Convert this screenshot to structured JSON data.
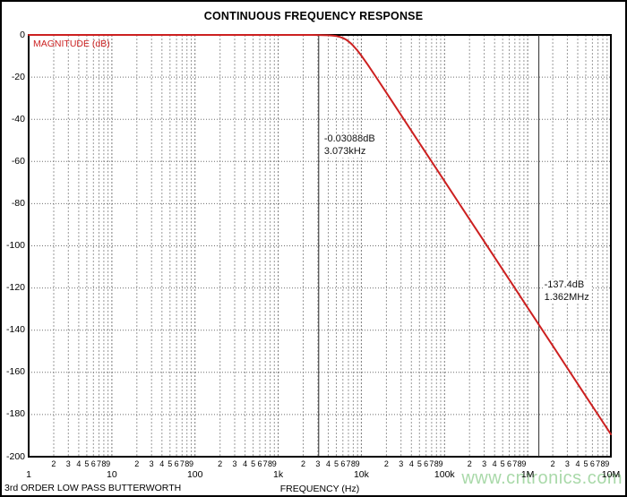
{
  "watermark": "www.cntronics.com",
  "colors": {
    "curve": "#cc2020",
    "magnitude_label": "#cc2222",
    "watermark": "#a9d9a9",
    "grid_minor": "#9a9a9a",
    "grid_decade": "#7a7a7a",
    "grid_horizontal": "#6e6e6e",
    "cursor_line": "#2b2b2b",
    "plot_border": "#000000"
  },
  "chart_data": {
    "type": "line",
    "title": "CONTINUOUS FREQUENCY RESPONSE",
    "xlabel": "FREQUENCY (Hz)",
    "ylabel": "MAGNITUDE (dB)",
    "caption_left": "3rd ORDER LOW PASS BUTTERWORTH",
    "x_scale": "log",
    "xlim": [
      1,
      10000000
    ],
    "ylim": [
      -200,
      0
    ],
    "grid": true,
    "legend_position": "none",
    "y_ticks": [
      0,
      -20,
      -40,
      -60,
      -80,
      -100,
      -120,
      -140,
      -160,
      -180,
      -200
    ],
    "x_decade_labels": [
      "1",
      "10",
      "100",
      "1k",
      "10k",
      "100k",
      "1M",
      "10M"
    ],
    "x_minor_digits": [
      "2",
      "3",
      "4",
      "5",
      "6",
      "7",
      "8",
      "9"
    ],
    "series": [
      {
        "name": "MAGNITUDE (dB)",
        "color": "#cc2020",
        "points": [
          [
            1,
            0
          ],
          [
            10,
            0
          ],
          [
            100,
            0
          ],
          [
            1000,
            0
          ],
          [
            1500,
            -0.0003
          ],
          [
            2000,
            -0.0024
          ],
          [
            2500,
            -0.0091
          ],
          [
            3000,
            -0.0272
          ],
          [
            3073,
            -0.0309
          ],
          [
            3500,
            -0.0683
          ],
          [
            4000,
            -0.1504
          ],
          [
            4500,
            -0.2996
          ],
          [
            5000,
            -0.5478
          ],
          [
            5500,
            -0.928
          ],
          [
            6000,
            -1.4634
          ],
          [
            6500,
            -2.173
          ],
          [
            7000,
            -3.038
          ],
          [
            7500,
            -4.035
          ],
          [
            8000,
            -5.125
          ],
          [
            9000,
            -7.46
          ],
          [
            10000,
            -9.826
          ],
          [
            12000,
            -14.26
          ],
          [
            15000,
            -19.96
          ],
          [
            20000,
            -27.42
          ],
          [
            30000,
            -37.98
          ],
          [
            50000,
            -51.29
          ],
          [
            70000,
            -60.06
          ],
          [
            100000,
            -69.35
          ],
          [
            150000,
            -79.92
          ],
          [
            200000,
            -87.4
          ],
          [
            300000,
            -97.98
          ],
          [
            500000,
            -111.3
          ],
          [
            700000,
            -120.06
          ],
          [
            1000000,
            -129.35
          ],
          [
            1362000,
            -137.4
          ],
          [
            2000000,
            -147.4
          ],
          [
            3000000,
            -157.98
          ],
          [
            5000000,
            -171.3
          ],
          [
            7000000,
            -180.06
          ],
          [
            10000000,
            -189.35
          ]
        ]
      }
    ],
    "cursors": [
      {
        "freq_hz": 3073,
        "magnitude_db": -0.03088,
        "label_lines": [
          "-0.03088dB",
          "3.073kHz"
        ]
      },
      {
        "freq_hz": 1362000,
        "magnitude_db": -137.4,
        "label_lines": [
          "-137.4dB",
          "1.362MHz"
        ]
      }
    ]
  }
}
